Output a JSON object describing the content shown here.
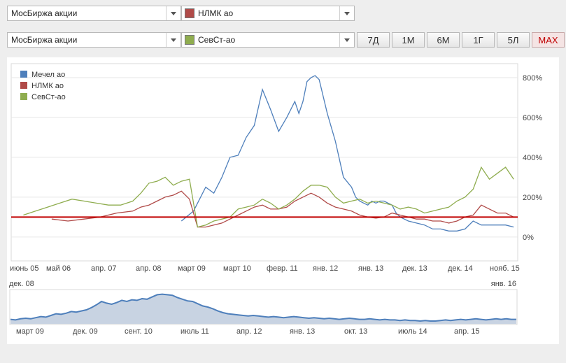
{
  "selectors": [
    {
      "market": "МосБиржа акции",
      "instrument": "НЛМК ао",
      "color": "#b04a48"
    },
    {
      "market": "МосБиржа акции",
      "instrument": "СевСт-ао",
      "color": "#8fad4f"
    }
  ],
  "periods": [
    "7Д",
    "1М",
    "6М",
    "1Г",
    "5Л",
    "MAX"
  ],
  "active_period": "MAX",
  "navigator": {
    "start_label": "дек. 08",
    "end_label": "янв. 16",
    "ticks": [
      "март 09",
      "дек. 09",
      "сент. 10",
      "июль 11",
      "апр. 12",
      "янв. 13",
      "окт. 13",
      "июль 14",
      "апр. 15"
    ],
    "values": [
      8,
      7,
      9,
      10,
      9,
      11,
      13,
      12,
      15,
      18,
      17,
      19,
      22,
      21,
      23,
      25,
      29,
      34,
      40,
      37,
      35,
      38,
      42,
      40,
      43,
      42,
      45,
      44,
      48,
      52,
      53,
      52,
      51,
      47,
      44,
      41,
      40,
      36,
      32,
      30,
      27,
      23,
      20,
      18,
      17,
      16,
      15,
      14,
      15,
      14,
      13,
      12,
      13,
      12,
      11,
      12,
      13,
      12,
      11,
      10,
      11,
      10,
      9,
      10,
      9,
      8,
      9,
      10,
      9,
      8,
      8,
      9,
      8,
      7,
      8,
      7,
      7,
      6,
      7,
      6,
      6,
      5,
      6,
      5,
      5,
      6,
      7,
      6,
      7,
      8,
      7,
      8,
      9,
      8,
      7,
      8,
      9,
      8,
      9,
      8,
      8
    ]
  },
  "chart_data": {
    "type": "line",
    "x_ticks": [
      "июнь 05",
      "май 06",
      "апр. 07",
      "апр. 08",
      "март 09",
      "март 10",
      "февр. 11",
      "янв. 12",
      "янв. 13",
      "дек. 13",
      "дек. 14",
      "нояб. 15"
    ],
    "y_ticks": [
      "0%",
      "200%",
      "400%",
      "600%",
      "800%"
    ],
    "ylim": [
      -120,
      870
    ],
    "xlim": [
      0,
      125
    ],
    "baseline": 100,
    "baseline_color": "#c00000",
    "legend_position": "top-left",
    "series": [
      {
        "name": "Мечел ао",
        "color": "#4e7fbb",
        "x": [
          42,
          45,
          48,
          50,
          52,
          54,
          56,
          58,
          60,
          62,
          64,
          66,
          68,
          70,
          71,
          72,
          73,
          74,
          75,
          76,
          78,
          80,
          82,
          84,
          85,
          86,
          87,
          88,
          89,
          90,
          91,
          92,
          93,
          94,
          95,
          96,
          97,
          98,
          100,
          102,
          104,
          106,
          108,
          110,
          112,
          114,
          116,
          118,
          120,
          122,
          124
        ],
        "y": [
          80,
          130,
          250,
          220,
          300,
          400,
          410,
          500,
          560,
          740,
          640,
          530,
          600,
          680,
          620,
          680,
          780,
          800,
          810,
          790,
          620,
          480,
          300,
          250,
          200,
          180,
          170,
          160,
          180,
          170,
          180,
          180,
          170,
          160,
          120,
          100,
          90,
          80,
          70,
          60,
          40,
          40,
          30,
          30,
          40,
          80,
          60,
          60,
          60,
          60,
          50
        ]
      },
      {
        "name": "НЛМК ао",
        "color": "#b04a48",
        "x": [
          10,
          14,
          18,
          22,
          26,
          30,
          32,
          34,
          36,
          38,
          40,
          42,
          44,
          46,
          48,
          50,
          52,
          54,
          56,
          58,
          60,
          62,
          64,
          66,
          68,
          70,
          72,
          74,
          76,
          78,
          80,
          82,
          84,
          86,
          88,
          90,
          92,
          94,
          96,
          98,
          100,
          102,
          104,
          106,
          108,
          110,
          112,
          114,
          116,
          118,
          120,
          122,
          124
        ],
        "y": [
          90,
          80,
          90,
          100,
          120,
          130,
          150,
          160,
          180,
          200,
          210,
          230,
          190,
          50,
          50,
          60,
          70,
          90,
          110,
          130,
          150,
          160,
          140,
          140,
          150,
          180,
          200,
          220,
          200,
          170,
          150,
          140,
          130,
          110,
          100,
          95,
          100,
          120,
          110,
          100,
          90,
          90,
          80,
          80,
          70,
          80,
          100,
          110,
          160,
          140,
          120,
          120,
          100
        ]
      },
      {
        "name": "СевСт-ао",
        "color": "#8fad4f",
        "x": [
          3,
          6,
          9,
          12,
          15,
          18,
          21,
          24,
          27,
          30,
          32,
          34,
          36,
          38,
          40,
          42,
          44,
          46,
          48,
          50,
          52,
          54,
          56,
          58,
          60,
          62,
          64,
          66,
          68,
          70,
          72,
          74,
          76,
          78,
          80,
          82,
          84,
          86,
          88,
          90,
          92,
          94,
          96,
          98,
          100,
          102,
          104,
          106,
          108,
          110,
          112,
          114,
          116,
          118,
          120,
          122,
          124
        ],
        "y": [
          110,
          130,
          150,
          170,
          190,
          180,
          170,
          160,
          160,
          180,
          220,
          270,
          280,
          300,
          260,
          280,
          290,
          50,
          60,
          80,
          90,
          100,
          140,
          150,
          160,
          190,
          170,
          140,
          160,
          190,
          230,
          260,
          260,
          250,
          200,
          170,
          180,
          190,
          170,
          180,
          170,
          160,
          140,
          150,
          140,
          120,
          130,
          140,
          150,
          180,
          200,
          240,
          350,
          290,
          320,
          350,
          290
        ]
      }
    ]
  }
}
